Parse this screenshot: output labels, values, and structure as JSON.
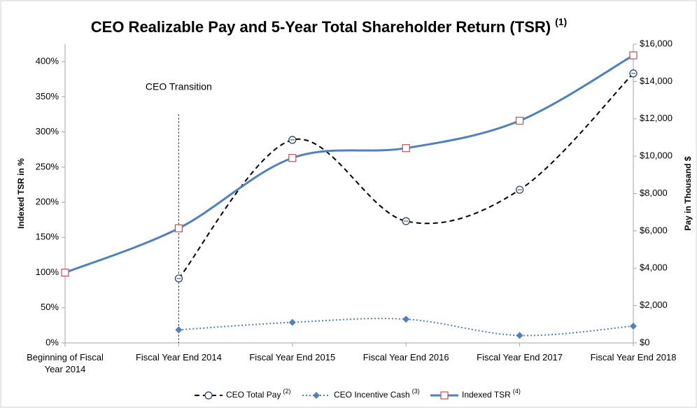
{
  "chart_data": {
    "type": "line",
    "title": "CEO Realizable Pay and 5-Year Total Shareholder Return (TSR)",
    "title_note": "(1)",
    "categories": [
      "Beginning of Fiscal Year 2014",
      "Fiscal Year End 2014",
      "Fiscal Year End 2015",
      "Fiscal Year End 2016",
      "Fiscal Year End 2017",
      "Fiscal Year End 2018"
    ],
    "y_label": "Indexed TSR in %",
    "y2_label": "Pay in Thousand $",
    "ylim": [
      0,
      425
    ],
    "yticks": [
      {
        "value": 0,
        "label": "0%"
      },
      {
        "value": 50,
        "label": "50%"
      },
      {
        "value": 100,
        "label": "100%"
      },
      {
        "value": 150,
        "label": "150%"
      },
      {
        "value": 200,
        "label": "200%"
      },
      {
        "value": 250,
        "label": "250%"
      },
      {
        "value": 300,
        "label": "300%"
      },
      {
        "value": 350,
        "label": "350%"
      },
      {
        "value": 400,
        "label": "400%"
      }
    ],
    "y2lim": [
      0,
      16000
    ],
    "y2ticks": [
      {
        "value": 0,
        "label": "$0"
      },
      {
        "value": 2000,
        "label": "$2,000"
      },
      {
        "value": 4000,
        "label": "$4,000"
      },
      {
        "value": 6000,
        "label": "$6,000"
      },
      {
        "value": 8000,
        "label": "$8,000"
      },
      {
        "value": 10000,
        "label": "$10,000"
      },
      {
        "value": 12000,
        "label": "$12,000"
      },
      {
        "value": 14000,
        "label": "$14,000"
      },
      {
        "value": 16000,
        "label": "$16,000"
      }
    ],
    "annotation": {
      "text": "CEO Transition",
      "category": 1
    },
    "series": [
      {
        "name": "CEO Total Pay",
        "note": "(2)",
        "axis": "y2",
        "color": "#000000",
        "marker_color": "#1f3864",
        "style": "dashed",
        "marker": "circle",
        "values": [
          null,
          3450,
          10870,
          6520,
          8200,
          14430
        ]
      },
      {
        "name": "CEO Incentive Cash",
        "note": "(3)",
        "axis": "y2",
        "color": "#4f81bd",
        "marker_color": "#4f81bd",
        "style": "dotted",
        "marker": "diamond",
        "values": [
          null,
          700,
          1100,
          1270,
          400,
          900
        ]
      },
      {
        "name": "Indexed TSR",
        "note": "(4)",
        "axis": "y",
        "color": "#4f81bd",
        "marker_color": "#c0504d",
        "style": "solid",
        "marker": "square",
        "values": [
          100,
          163,
          263,
          277,
          316,
          409
        ]
      }
    ]
  }
}
